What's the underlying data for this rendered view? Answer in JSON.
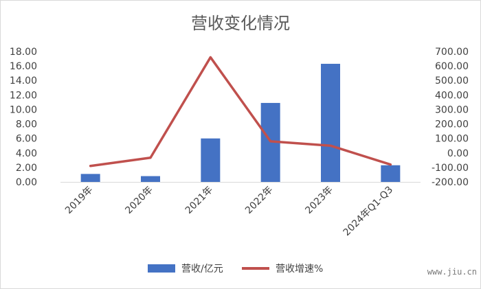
{
  "chart_data": {
    "type": "bar",
    "title": "营收变化情况",
    "categories": [
      "2019年",
      "2020年",
      "2021年",
      "2022年",
      "2023年",
      "2024年Q1-Q3"
    ],
    "series": [
      {
        "name": "营收/亿元",
        "type": "bar",
        "axis": "left",
        "color": "#4472C4",
        "values": [
          1.1,
          0.8,
          6.0,
          10.9,
          16.3,
          2.3
        ]
      },
      {
        "name": "营收增速%",
        "type": "line",
        "axis": "right",
        "color": "#C0504D",
        "values": [
          -90,
          -33,
          660,
          80,
          50,
          -80
        ]
      }
    ],
    "y_left": {
      "min": 0,
      "max": 18,
      "step": 2,
      "ticks": [
        "0.00",
        "2.00",
        "4.00",
        "6.00",
        "8.00",
        "10.00",
        "12.00",
        "14.00",
        "16.00",
        "18.00"
      ]
    },
    "y_right": {
      "min": -200,
      "max": 700,
      "step": 100,
      "ticks": [
        "-200.00",
        "-100.00",
        "0.00",
        "100.00",
        "200.00",
        "300.00",
        "400.00",
        "500.00",
        "600.00",
        "700.00"
      ]
    },
    "grid": false,
    "legend": "bottom"
  },
  "watermark": "www.jiu.cn"
}
